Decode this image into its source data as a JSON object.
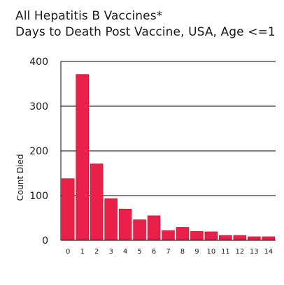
{
  "chart_data": {
    "type": "bar",
    "title": "All Hepatitis B Vaccines*",
    "subtitle": "Days to Death Post Vaccine, USA, Age <=1",
    "xlabel": "",
    "ylabel": "Count Died",
    "categories": [
      "0",
      "1",
      "2",
      "3",
      "4",
      "5",
      "6",
      "7",
      "8",
      "9",
      "10",
      "11",
      "12",
      "13",
      "14"
    ],
    "values": [
      138,
      371,
      171,
      93,
      70,
      46,
      55,
      22,
      29,
      20,
      19,
      11,
      11,
      8,
      8
    ],
    "ylim": [
      0,
      400
    ],
    "yticks": [
      "0",
      "100",
      "200",
      "300",
      "400"
    ],
    "grid": true,
    "colors": {
      "bar": "#e8204a",
      "bar_edge": "#c8102e",
      "grid": "#000000"
    }
  }
}
